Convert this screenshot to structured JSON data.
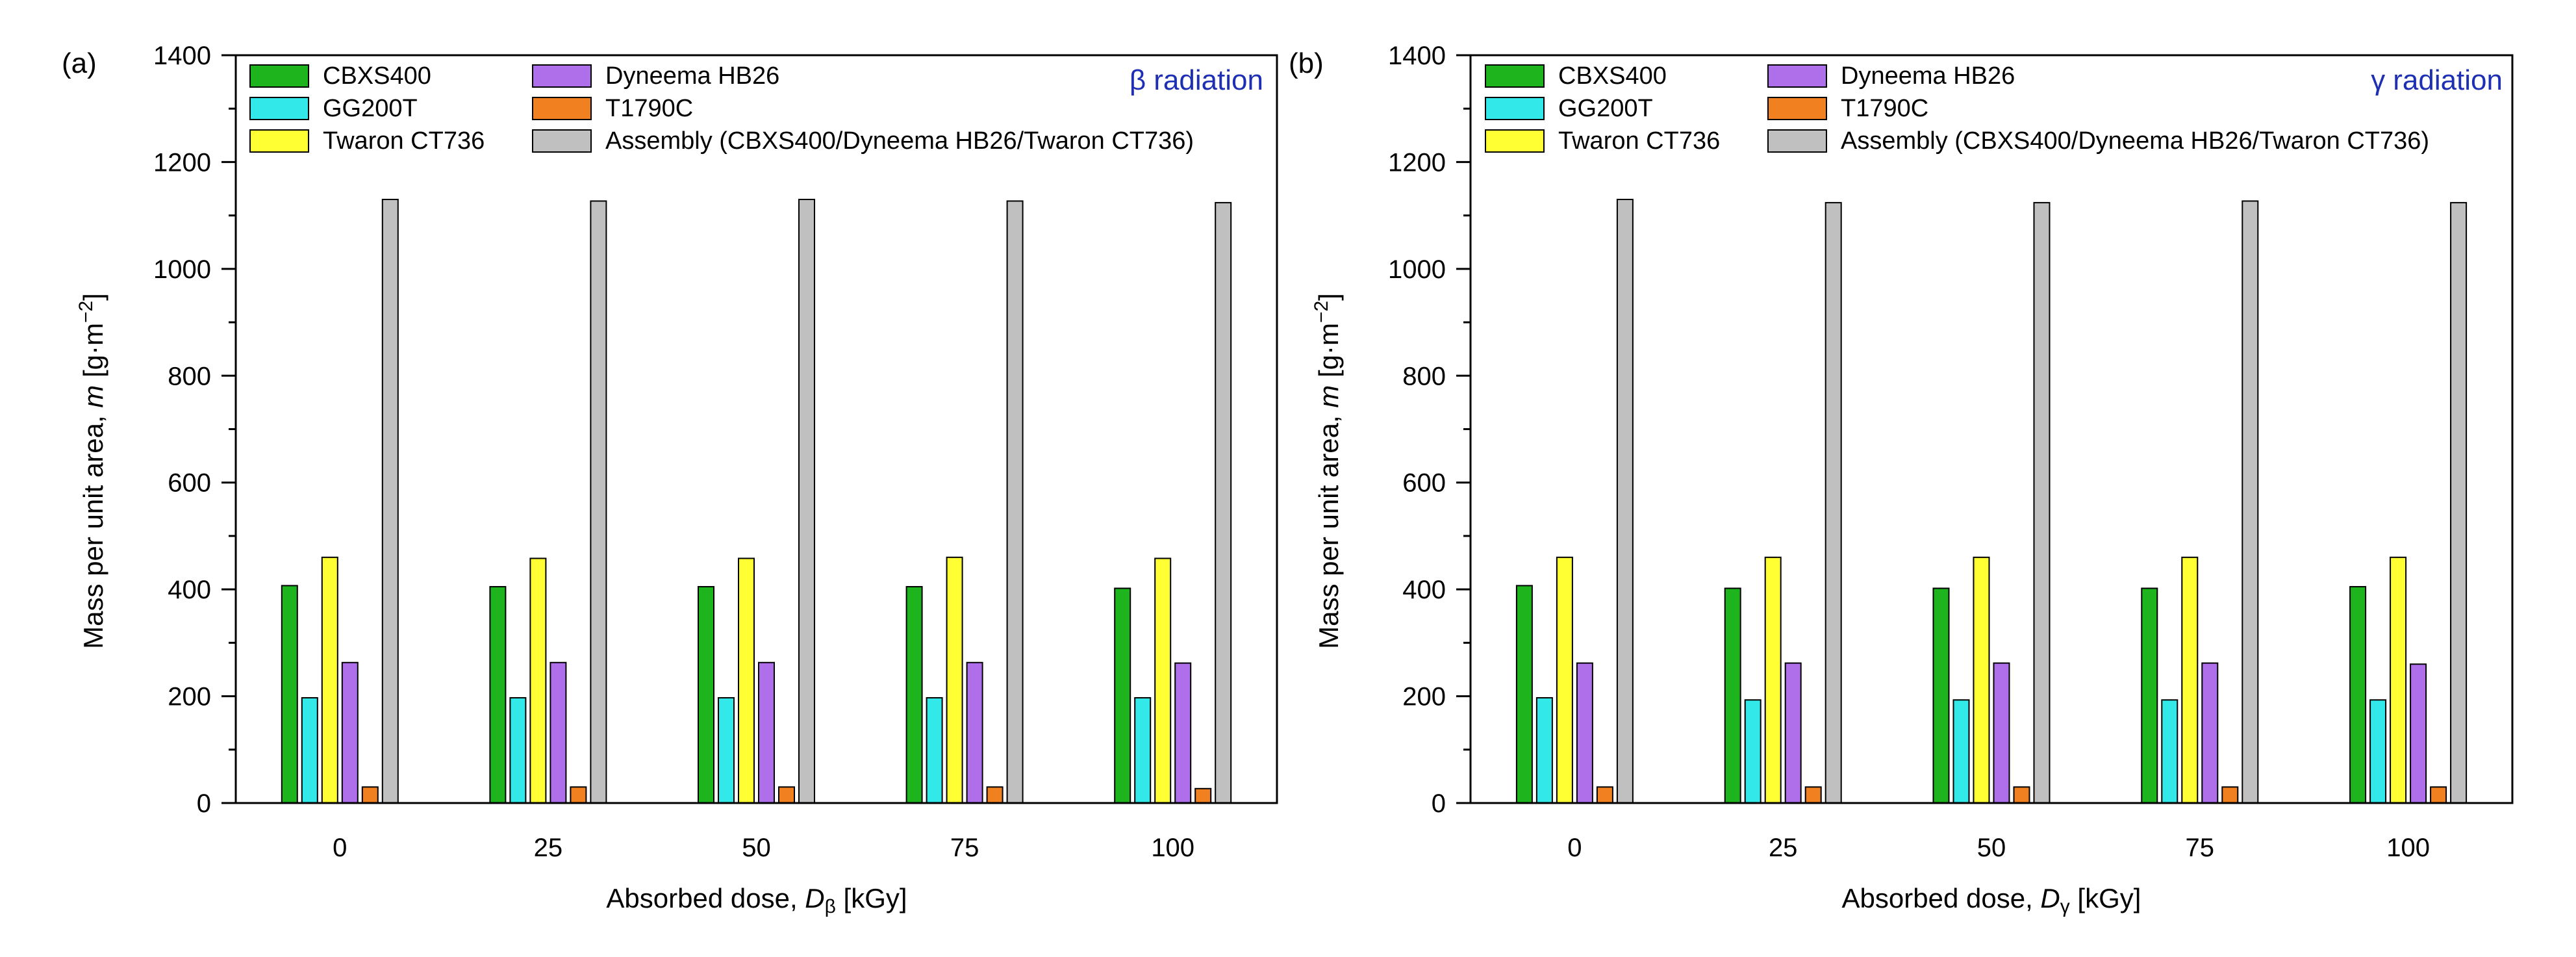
{
  "chart_data": [
    {
      "type": "bar",
      "panel_label": "(a)",
      "radiation_symbol": "β",
      "radiation_label": "radiation",
      "xlabel_prefix": "Absorbed dose, ",
      "xlabel_var": "D",
      "xlabel_sub": "β",
      "xlabel_unit": " [kGy]",
      "ylabel_text": "Mass per unit area, ",
      "ylabel_var": "m",
      "ylabel_unit_open": " [g·m",
      "ylabel_sup": "−2",
      "ylabel_unit_close": "]",
      "categories": [
        "0",
        "25",
        "50",
        "75",
        "100"
      ],
      "ylim": [
        0,
        1400
      ],
      "yticks": [
        "0",
        "200",
        "400",
        "600",
        "800",
        "1000",
        "1200",
        "1400"
      ],
      "series": [
        {
          "name": "CBXS400",
          "color": "#1db41d",
          "values": [
            407,
            405,
            405,
            405,
            402
          ]
        },
        {
          "name": "GG200T",
          "color": "#33e8e8",
          "values": [
            197,
            197,
            197,
            197,
            197
          ]
        },
        {
          "name": "Twaron CT736",
          "color": "#ffff33",
          "values": [
            460,
            458,
            458,
            460,
            458
          ]
        },
        {
          "name": "Dyneema HB26",
          "color": "#b06fea",
          "values": [
            263,
            263,
            263,
            263,
            262
          ]
        },
        {
          "name": "T1790C",
          "color": "#f08020",
          "values": [
            30,
            30,
            30,
            30,
            27
          ]
        },
        {
          "name": "Assembly (CBXS400/Dyneema HB26/Twaron CT736)",
          "color": "#c0c0c0",
          "values": [
            1130,
            1127,
            1130,
            1127,
            1124
          ]
        }
      ]
    },
    {
      "type": "bar",
      "panel_label": "(b)",
      "radiation_symbol": "γ",
      "radiation_label": "radiation",
      "xlabel_prefix": "Absorbed dose, ",
      "xlabel_var": "D",
      "xlabel_sub": "γ",
      "xlabel_unit": " [kGy]",
      "ylabel_text": "Mass per unit area, ",
      "ylabel_var": "m",
      "ylabel_unit_open": " [g·m",
      "ylabel_sup": "−2",
      "ylabel_unit_close": "]",
      "categories": [
        "0",
        "25",
        "50",
        "75",
        "100"
      ],
      "ylim": [
        0,
        1400
      ],
      "yticks": [
        "0",
        "200",
        "400",
        "600",
        "800",
        "1000",
        "1200",
        "1400"
      ],
      "series": [
        {
          "name": "CBXS400",
          "color": "#1db41d",
          "values": [
            407,
            402,
            402,
            402,
            405
          ]
        },
        {
          "name": "GG200T",
          "color": "#33e8e8",
          "values": [
            197,
            193,
            193,
            193,
            193
          ]
        },
        {
          "name": "Twaron CT736",
          "color": "#ffff33",
          "values": [
            460,
            460,
            460,
            460,
            460
          ]
        },
        {
          "name": "Dyneema HB26",
          "color": "#b06fea",
          "values": [
            262,
            262,
            262,
            262,
            260
          ]
        },
        {
          "name": "T1790C",
          "color": "#f08020",
          "values": [
            30,
            30,
            30,
            30,
            30
          ]
        },
        {
          "name": "Assembly (CBXS400/Dyneema HB26/Twaron CT736)",
          "color": "#c0c0c0",
          "values": [
            1130,
            1124,
            1124,
            1127,
            1124
          ]
        }
      ]
    }
  ]
}
